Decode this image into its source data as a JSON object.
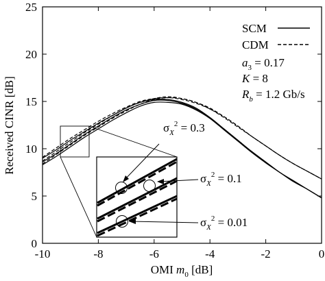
{
  "chart_data": {
    "type": "line",
    "xlabel_main": "OMI ",
    "xlabel_var": "m",
    "xlabel_sub": "0",
    "xlabel_unit": " [dB]",
    "ylabel": "Received CINR [dB]",
    "xlim": [
      -10,
      0
    ],
    "ylim": [
      0,
      25
    ],
    "xticks": [
      -10,
      -8,
      -6,
      -4,
      -2,
      0
    ],
    "yticks": [
      0,
      5,
      10,
      15,
      20,
      25
    ],
    "grid": false,
    "legend": {
      "placement": "top-right",
      "entries": [
        {
          "label": "SCM",
          "style": "solid"
        },
        {
          "label": "CDM",
          "style": "dashed"
        }
      ]
    },
    "params": {
      "a3_var": "a",
      "a3_sub": "3",
      "a3_val": " = 0.17",
      "k_var": "K",
      "k_val": " = 8",
      "rb_var": "R",
      "rb_sub": "b",
      "rb_val": " = 1.2 Gb/s"
    },
    "annotations": [
      {
        "sym": "σ",
        "sub": "X",
        "sup": "2",
        "val": " = 0.3"
      },
      {
        "sym": "σ",
        "sub": "X",
        "sup": "2",
        "val": " = 0.1"
      },
      {
        "sym": "σ",
        "sub": "X",
        "sup": "2",
        "val": " = 0.01"
      }
    ],
    "x": [
      -10,
      -9.5,
      -9,
      -8.5,
      -8,
      -7.5,
      -7,
      -6.5,
      -6,
      -5.5,
      -5,
      -4.5,
      -4,
      -3.5,
      -3,
      -2.5,
      -2,
      -1.5,
      -1,
      -0.5,
      0
    ],
    "series": [
      {
        "style": "solid",
        "values": [
          9.0,
          9.9,
          10.9,
          11.8,
          12.7,
          13.5,
          14.3,
          14.9,
          15.2,
          15.2,
          14.9,
          14.3,
          13.3,
          12.1,
          10.9,
          9.7,
          8.6,
          7.5,
          6.6,
          5.7,
          4.8
        ]
      },
      {
        "style": "solid",
        "values": [
          8.6,
          9.5,
          10.5,
          11.5,
          12.4,
          13.3,
          14.1,
          14.7,
          15.1,
          15.1,
          14.8,
          14.2,
          13.3,
          12.1,
          10.9,
          9.7,
          8.6,
          7.5,
          6.6,
          5.7,
          4.8
        ]
      },
      {
        "style": "solid",
        "values": [
          8.3,
          9.2,
          10.2,
          11.2,
          12.1,
          13.0,
          13.8,
          14.5,
          14.9,
          14.9,
          14.7,
          14.1,
          13.2,
          12.0,
          10.8,
          9.6,
          8.5,
          7.5,
          6.5,
          5.7,
          4.8
        ]
      },
      {
        "style": "dashed",
        "values": [
          9.1,
          10.1,
          11.1,
          12.0,
          12.9,
          13.7,
          14.4,
          15.0,
          15.3,
          15.4,
          15.2,
          14.8,
          14.2,
          13.3,
          12.3,
          11.3,
          10.3,
          9.3,
          8.4,
          7.6,
          6.8
        ]
      },
      {
        "style": "dashed",
        "values": [
          8.7,
          9.7,
          10.7,
          11.7,
          12.6,
          13.5,
          14.3,
          14.9,
          15.3,
          15.5,
          15.3,
          14.9,
          14.3,
          13.4,
          12.4,
          11.3,
          10.3,
          9.3,
          8.4,
          7.6,
          6.8
        ]
      },
      {
        "style": "dashed",
        "values": [
          8.4,
          9.4,
          10.4,
          11.4,
          12.3,
          13.2,
          14.0,
          14.7,
          15.2,
          15.4,
          15.3,
          14.9,
          14.2,
          13.4,
          12.4,
          11.3,
          10.3,
          9.3,
          8.4,
          7.6,
          6.8
        ]
      }
    ]
  }
}
